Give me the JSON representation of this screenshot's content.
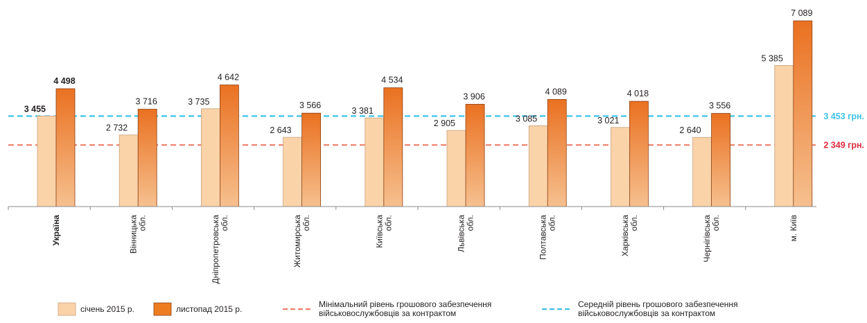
{
  "chart_data": {
    "type": "bar",
    "categories": [
      {
        "lines": [
          "Україна"
        ],
        "bold": true
      },
      {
        "lines": [
          "Вінницька",
          "обл."
        ]
      },
      {
        "lines": [
          "Дніпропетровська",
          "обл."
        ]
      },
      {
        "lines": [
          "Житомирська",
          "обл."
        ]
      },
      {
        "lines": [
          "Київська",
          "обл."
        ]
      },
      {
        "lines": [
          "Львівська",
          "обл."
        ]
      },
      {
        "lines": [
          "Полтавська",
          "обл."
        ]
      },
      {
        "lines": [
          "Харківська",
          "обл."
        ]
      },
      {
        "lines": [
          "Чернігівська",
          "обл."
        ]
      },
      {
        "lines": [
          "м. Київ"
        ]
      }
    ],
    "series": [
      {
        "name": "січень 2015 р.",
        "values": [
          3455,
          2732,
          3735,
          2643,
          3381,
          2905,
          3085,
          3021,
          2640,
          5385
        ],
        "labels": [
          "3 455",
          "2 732",
          "3 735",
          "2 643",
          "3 381",
          "2 905",
          "3 085",
          "3 021",
          "2 640",
          "5 385"
        ],
        "color": "#fbd3a9"
      },
      {
        "name": "листопад 2015 р.",
        "values": [
          4498,
          3716,
          4642,
          3566,
          4534,
          3906,
          4089,
          4018,
          3556,
          7089
        ],
        "labels": [
          "4 498",
          "3 716",
          "4 642",
          "3 566",
          "4 534",
          "3 906",
          "4 089",
          "4 018",
          "3 556",
          "7 089"
        ],
        "color": "#ee7d22"
      }
    ],
    "reference_lines": [
      {
        "value": 3453,
        "label": "3 453 грн.",
        "color": "#3ec2e6",
        "legend": [
          "Середній рівень грошового забезпечення",
          "військовослужбовців за контрактом"
        ]
      },
      {
        "value": 2349,
        "label": "2 349 грн.",
        "color": "#ee7f6a",
        "label_color": "#dd2a3c",
        "legend": [
          "Мінімальний рівень грошового забезпечення",
          "військовослужбовців за контрактом"
        ]
      }
    ],
    "ylim": [
      0,
      7500
    ],
    "grid": false,
    "legend_position": "bottom"
  }
}
